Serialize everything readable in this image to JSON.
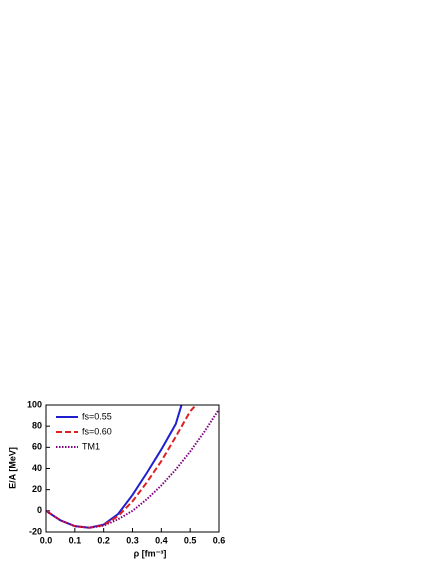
{
  "chart_data": {
    "type": "line",
    "xlabel": "ρ [fm⁻³]",
    "ylabel": "E/A [MeV]",
    "xlim": [
      0,
      0.6
    ],
    "ylim": [
      -20,
      100
    ],
    "xticks": [
      {
        "value": 0,
        "label": "0.0"
      },
      0.1,
      0.2,
      0.3,
      0.4,
      0.5,
      0.6
    ],
    "yticks": [
      -20,
      0,
      20,
      40,
      60,
      80,
      100
    ],
    "legend": "top-left",
    "series": [
      {
        "name": "fs=0.55",
        "color": "#1f1fd0",
        "dash": "solid",
        "x": [
          0,
          0.05,
          0.1,
          0.15,
          0.2,
          0.25,
          0.3,
          0.35,
          0.4,
          0.45,
          0.47
        ],
        "values": [
          0,
          -9,
          -14.5,
          -16,
          -13,
          -3,
          15,
          36,
          58,
          82,
          100
        ]
      },
      {
        "name": "fs=0.60",
        "color": "#e02020",
        "dash": "dashed",
        "x": [
          0,
          0.05,
          0.1,
          0.15,
          0.2,
          0.25,
          0.3,
          0.35,
          0.4,
          0.45,
          0.5,
          0.52
        ],
        "values": [
          0,
          -9,
          -14.5,
          -16,
          -13.5,
          -5,
          9,
          27,
          47,
          70,
          94,
          100
        ]
      },
      {
        "name": "TM1",
        "color": "#800080",
        "dash": "dotted",
        "x": [
          0,
          0.05,
          0.1,
          0.15,
          0.2,
          0.25,
          0.3,
          0.35,
          0.4,
          0.45,
          0.5,
          0.55,
          0.6
        ],
        "values": [
          0,
          -9,
          -14.5,
          -16,
          -14,
          -8,
          0,
          11,
          24,
          39,
          56,
          75,
          96
        ]
      }
    ]
  }
}
